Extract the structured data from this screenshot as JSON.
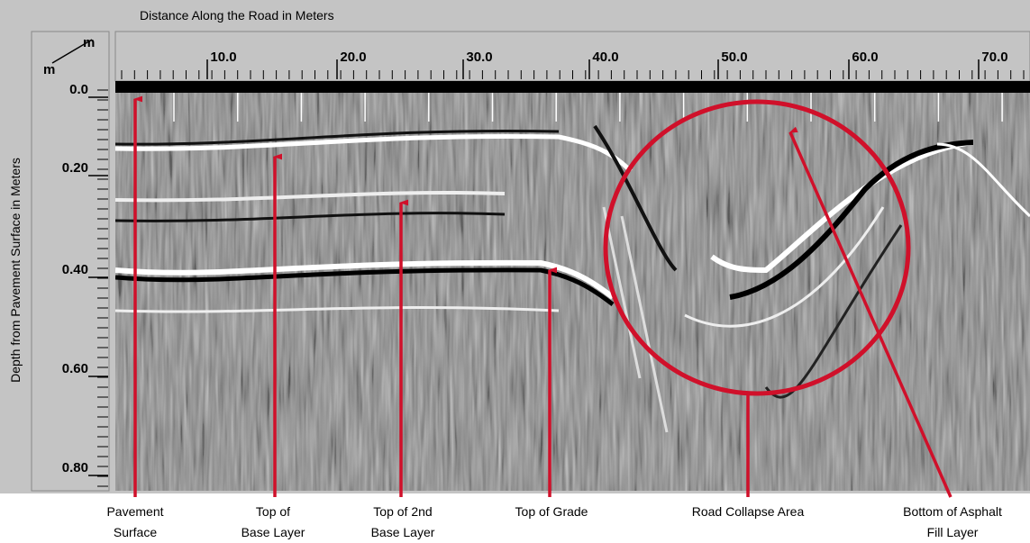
{
  "header": {
    "title": "Distance Along the Road in Meters"
  },
  "axes": {
    "corner_top": "m",
    "corner_bottom": "m",
    "x_ticks": [
      "10.0",
      "20.0",
      "30.0",
      "40.0",
      "50.0",
      "60.0",
      "70.0"
    ],
    "y_ticks": [
      "0.0",
      "0.20",
      "0.40",
      "0.60",
      "0.80"
    ],
    "y_label": "Depth from Pavement Surface in Meters"
  },
  "annotations": [
    {
      "lines": [
        "Pavement",
        "Surface"
      ]
    },
    {
      "lines": [
        "Top of",
        "Base Layer"
      ]
    },
    {
      "lines": [
        "Top of 2nd",
        "Base Layer"
      ]
    },
    {
      "lines": [
        "Top of Grade"
      ]
    },
    {
      "lines": [
        "Road Collapse Area"
      ]
    },
    {
      "lines": [
        "Bottom of Asphalt",
        "Fill Layer"
      ]
    }
  ]
}
